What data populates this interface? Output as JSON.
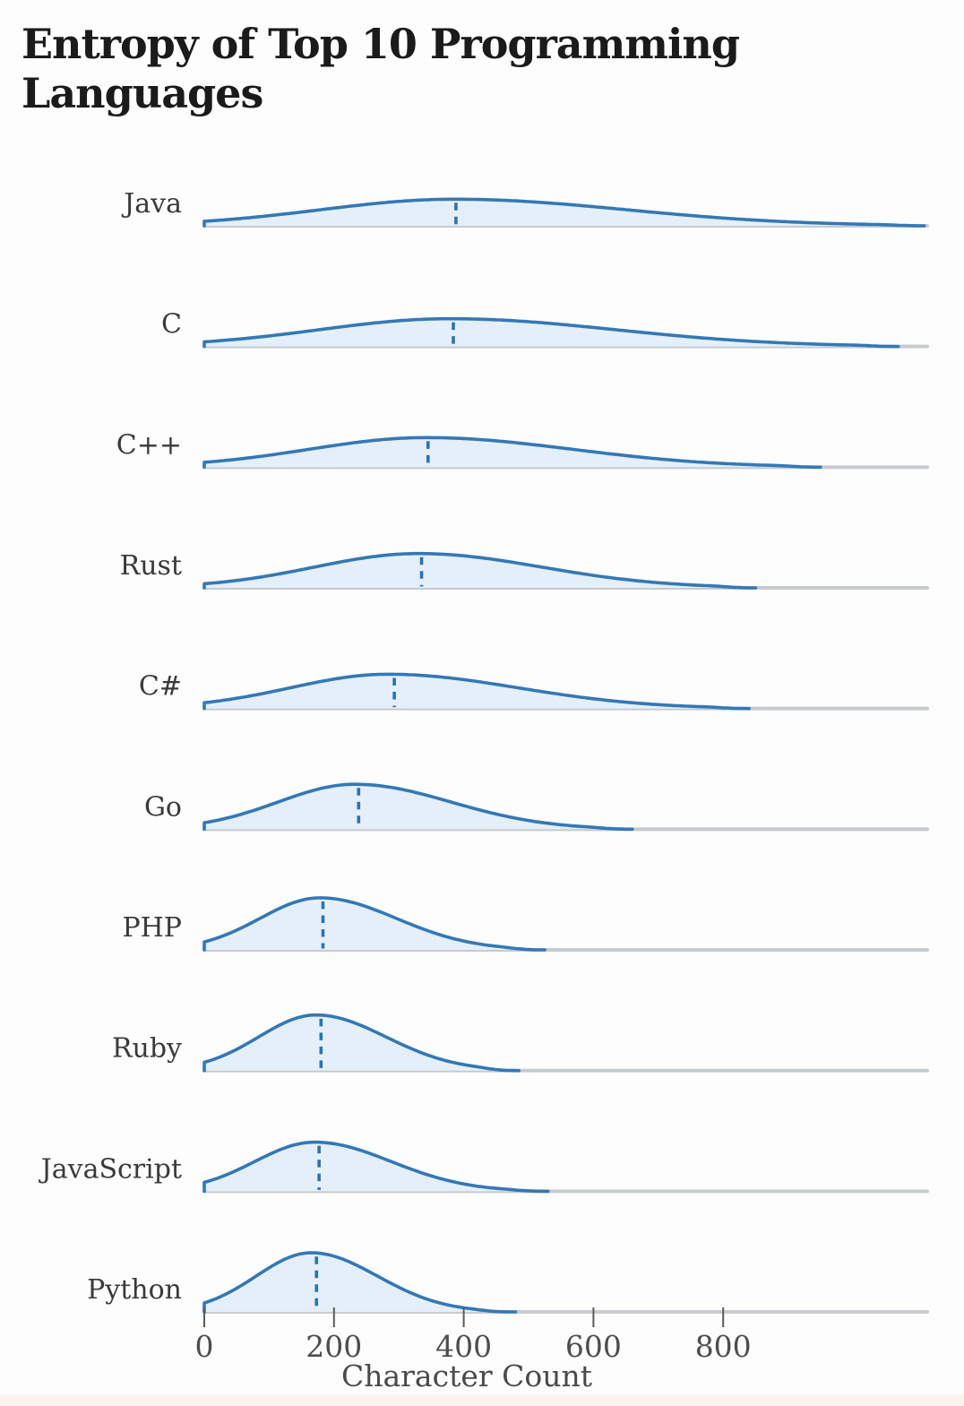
{
  "page": {
    "background_color": "#fdfdfd",
    "footer_strip_color": "#fbf3ef"
  },
  "colors": {
    "curve_stroke": "#3478b6",
    "curve_fill": "#e4effa",
    "median_dash": "#2c72b0",
    "baseline": "#c7cbce",
    "tick_mark": "#5a5a5a",
    "tick_text": "#4d4d4d",
    "axis_label_text": "#4a4a4a",
    "row_label_text": "#3a3a3a",
    "title_text": "#1b1b1b"
  },
  "chart_data": {
    "type": "area",
    "variant": "ridgeline-density",
    "title": "Entropy of Top 10 Programming Languages",
    "xlabel": "Character Count",
    "ylabel": "",
    "legend": false,
    "grid": false,
    "x_domain": [
      0,
      1110
    ],
    "x_ticks": [
      0,
      200,
      400,
      600,
      800
    ],
    "categories": [
      "Java",
      "C",
      "C++",
      "Rust",
      "C#",
      "Go",
      "PHP",
      "Ruby",
      "JavaScript",
      "Python"
    ],
    "series": [
      {
        "name": "Java",
        "median": 388,
        "mode": 385,
        "sigma_left": 205,
        "sigma_right": 265,
        "min": 0,
        "max": 1110,
        "relative_peak": 0.45
      },
      {
        "name": "C",
        "median": 384,
        "mode": 378,
        "sigma_left": 200,
        "sigma_right": 255,
        "min": 0,
        "max": 1070,
        "relative_peak": 0.47
      },
      {
        "name": "C++",
        "median": 345,
        "mode": 342,
        "sigma_left": 180,
        "sigma_right": 225,
        "min": 0,
        "max": 950,
        "relative_peak": 0.5
      },
      {
        "name": "Rust",
        "median": 335,
        "mode": 330,
        "sigma_left": 160,
        "sigma_right": 190,
        "min": 0,
        "max": 850,
        "relative_peak": 0.58
      },
      {
        "name": "C#",
        "median": 293,
        "mode": 283,
        "sigma_left": 150,
        "sigma_right": 200,
        "min": 0,
        "max": 840,
        "relative_peak": 0.58
      },
      {
        "name": "Go",
        "median": 238,
        "mode": 232,
        "sigma_left": 118,
        "sigma_right": 148,
        "min": 0,
        "max": 660,
        "relative_peak": 0.76
      },
      {
        "name": "PHP",
        "median": 183,
        "mode": 178,
        "sigma_left": 92,
        "sigma_right": 118,
        "min": 0,
        "max": 525,
        "relative_peak": 0.88
      },
      {
        "name": "Ruby",
        "median": 180,
        "mode": 172,
        "sigma_left": 88,
        "sigma_right": 108,
        "min": 0,
        "max": 485,
        "relative_peak": 0.94
      },
      {
        "name": "JavaScript",
        "median": 177,
        "mode": 170,
        "sigma_left": 92,
        "sigma_right": 118,
        "min": 0,
        "max": 530,
        "relative_peak": 0.83
      },
      {
        "name": "Python",
        "median": 173,
        "mode": 165,
        "sigma_left": 85,
        "sigma_right": 102,
        "min": 0,
        "max": 480,
        "relative_peak": 1.0
      }
    ]
  }
}
